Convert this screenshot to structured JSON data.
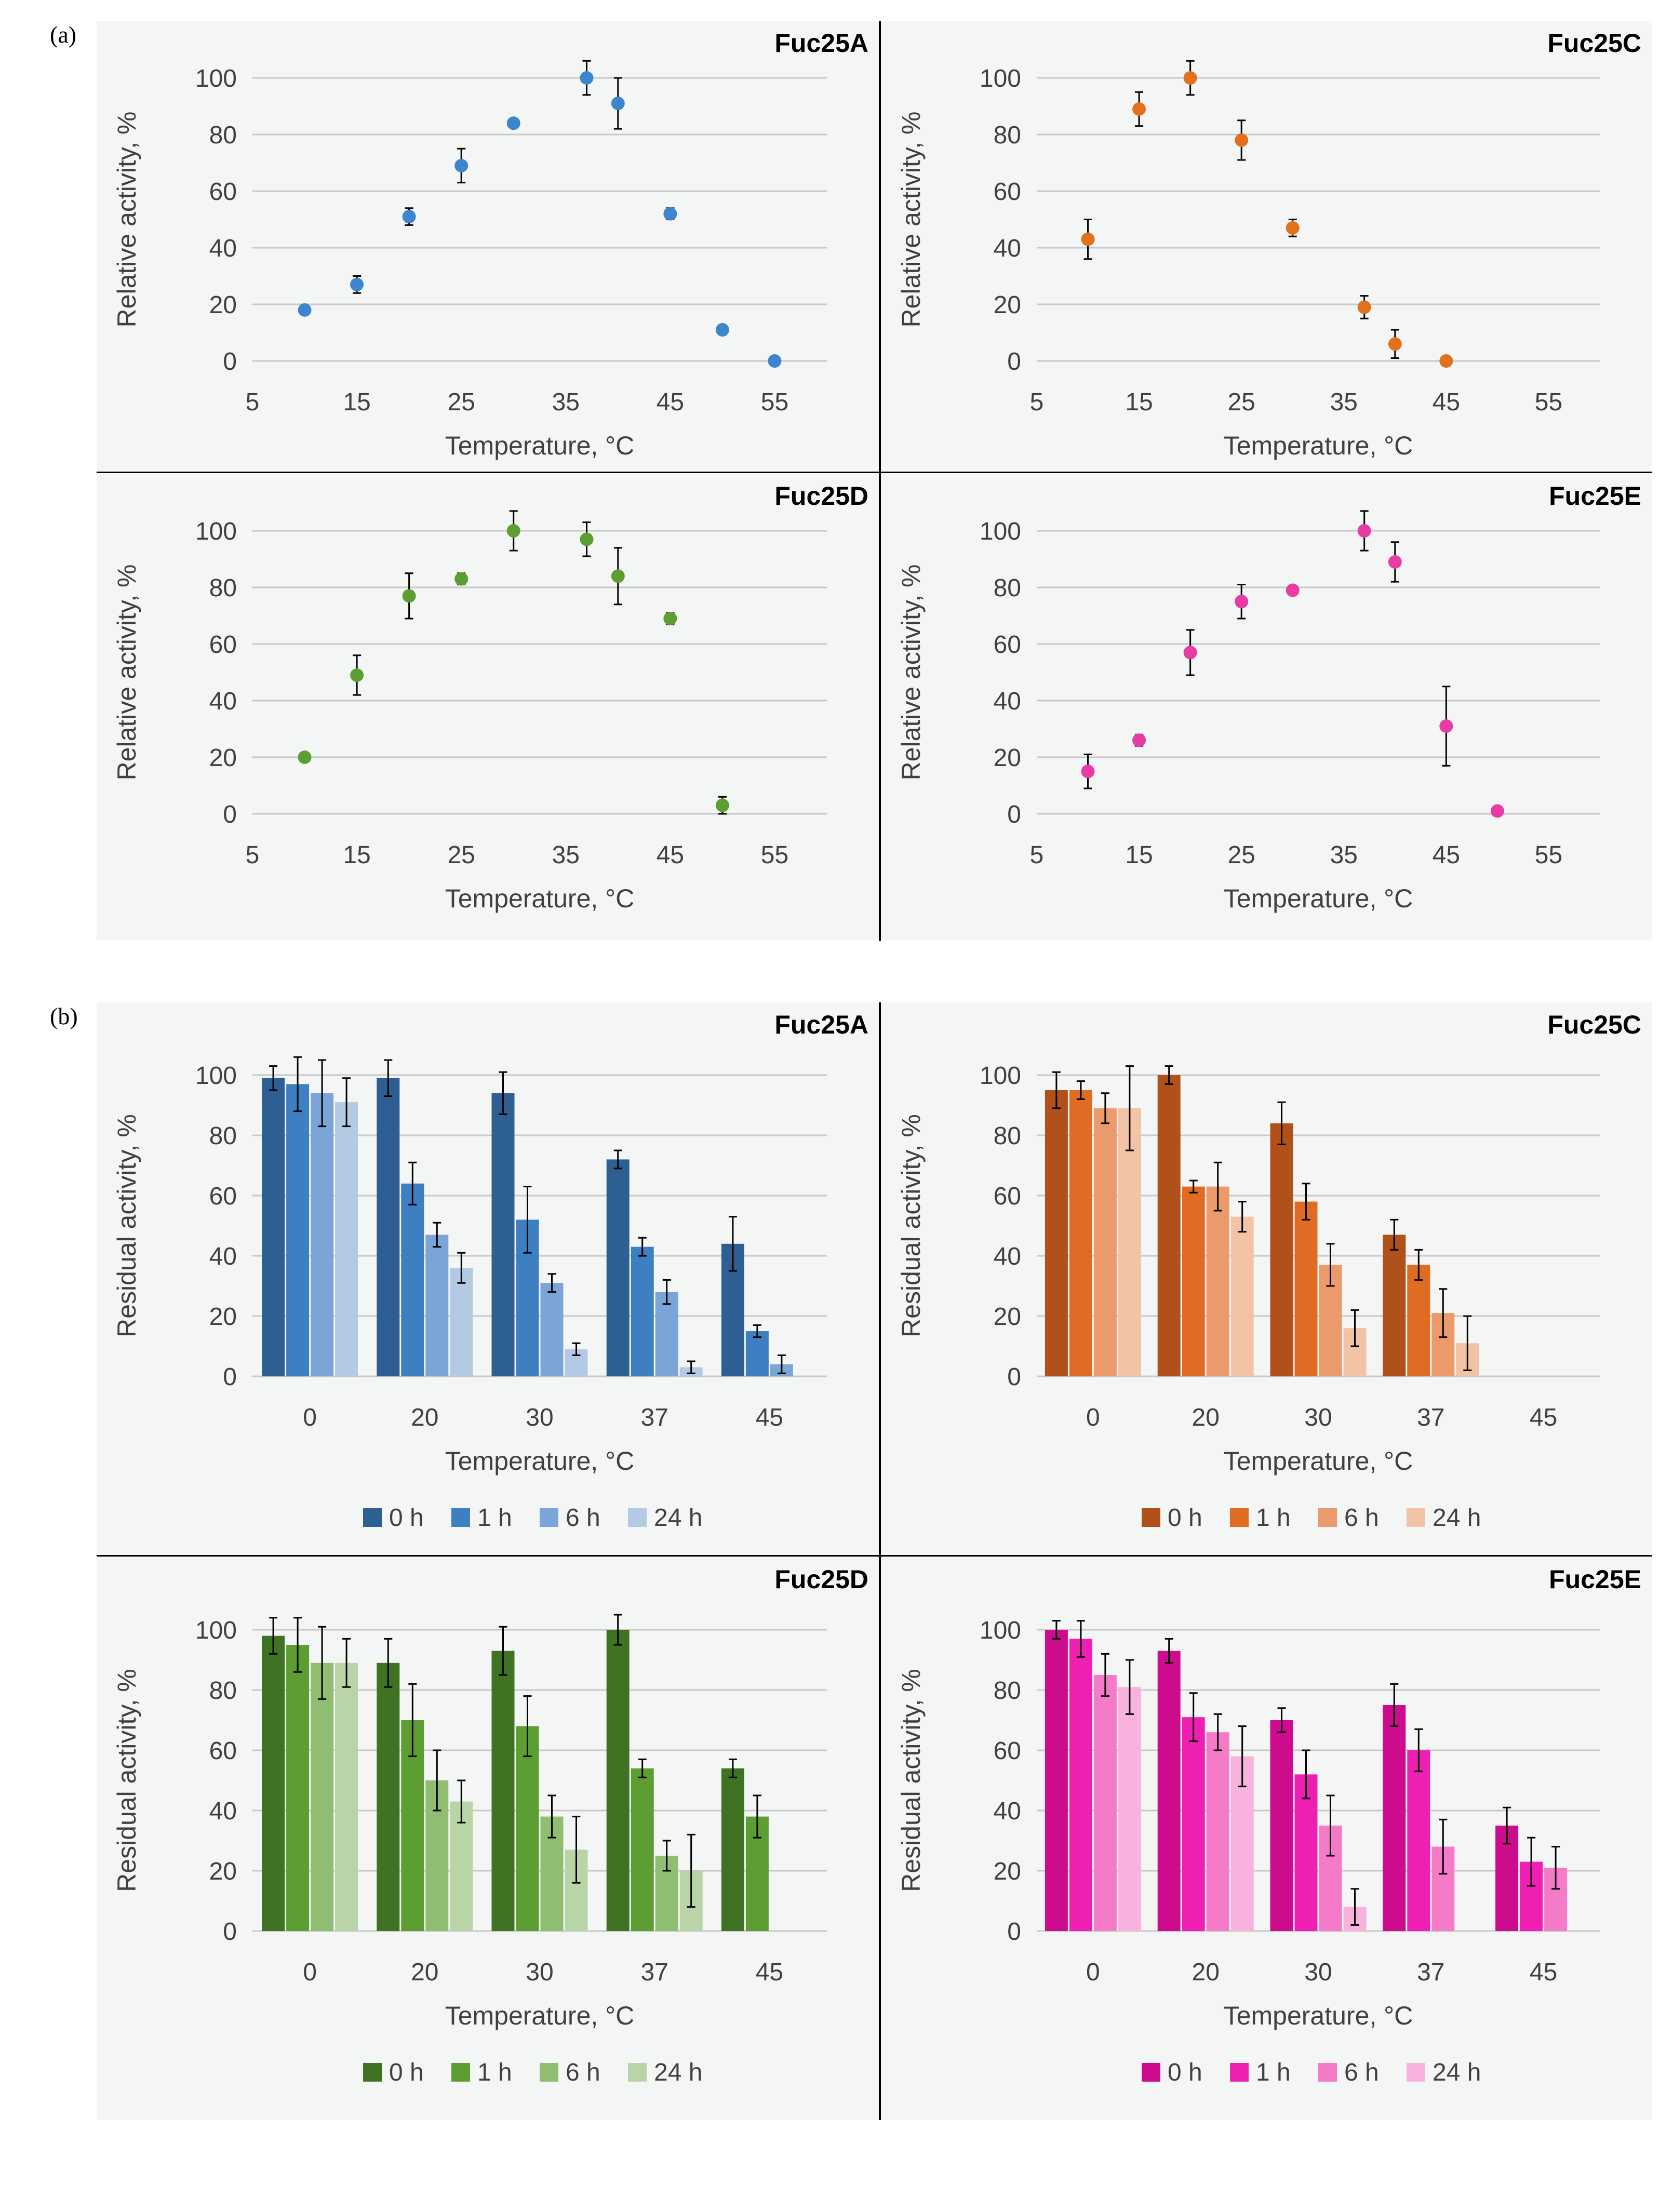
{
  "panel_labels": {
    "a": "(a)",
    "b": "(b)"
  },
  "colors": {
    "grid": "#c8c8c8",
    "axis_text": "#404040",
    "A": [
      "#2e5f93",
      "#3e7fc1",
      "#7aa5d6",
      "#b3c9e4"
    ],
    "C": [
      "#b0501a",
      "#e06b22",
      "#eb9a6b",
      "#f2c3a5"
    ],
    "D": [
      "#3f7222",
      "#5c9e31",
      "#8fbd72",
      "#b9d4a6"
    ],
    "E": [
      "#cc0c8c",
      "#f01fb4",
      "#f57bc9",
      "#f7b3dd"
    ],
    "scatter": {
      "A": "#3b86cd",
      "C": "#e3701d",
      "D": "#5c9e31",
      "E": "#e83ba3"
    }
  },
  "chart_data": [
    {
      "type": "scatter",
      "id": "a-fuc25a",
      "color_key": "A",
      "title": "Fuc25A",
      "xlabel": "Temperature, °C",
      "ylabel": "Relative activity, %",
      "xlim": [
        5,
        60
      ],
      "ylim": [
        0,
        100
      ],
      "xticks": [
        "5",
        "15",
        "25",
        "35",
        "45",
        "55"
      ],
      "yticks": [
        "0",
        "20",
        "40",
        "60",
        "80",
        "100"
      ],
      "points": [
        {
          "x": 10,
          "y": 18,
          "err": 0
        },
        {
          "x": 15,
          "y": 27,
          "err": 3
        },
        {
          "x": 20,
          "y": 51,
          "err": 3
        },
        {
          "x": 25,
          "y": 69,
          "err": 6
        },
        {
          "x": 30,
          "y": 84,
          "err": 0
        },
        {
          "x": 37,
          "y": 100,
          "err": 6
        },
        {
          "x": 40,
          "y": 91,
          "err": 9
        },
        {
          "x": 45,
          "y": 52,
          "err": 2
        },
        {
          "x": 50,
          "y": 11,
          "err": 0
        },
        {
          "x": 55,
          "y": 0,
          "err": 0
        }
      ]
    },
    {
      "type": "scatter",
      "id": "a-fuc25c",
      "color_key": "C",
      "title": "Fuc25C",
      "xlabel": "Temperature, °C",
      "ylabel": "Relative activity, %",
      "xlim": [
        5,
        60
      ],
      "ylim": [
        0,
        100
      ],
      "xticks": [
        "5",
        "15",
        "25",
        "35",
        "45",
        "55"
      ],
      "yticks": [
        "0",
        "20",
        "40",
        "60",
        "80",
        "100"
      ],
      "points": [
        {
          "x": 10,
          "y": 43,
          "err": 7
        },
        {
          "x": 15,
          "y": 89,
          "err": 6
        },
        {
          "x": 20,
          "y": 100,
          "err": 6
        },
        {
          "x": 25,
          "y": 78,
          "err": 7
        },
        {
          "x": 30,
          "y": 47,
          "err": 3
        },
        {
          "x": 37,
          "y": 19,
          "err": 4
        },
        {
          "x": 40,
          "y": 6,
          "err": 5
        },
        {
          "x": 45,
          "y": 0,
          "err": 0
        }
      ]
    },
    {
      "type": "scatter",
      "id": "a-fuc25d",
      "color_key": "D",
      "title": "Fuc25D",
      "xlabel": "Temperature, °C",
      "ylabel": "Relative activity, %",
      "xlim": [
        5,
        60
      ],
      "ylim": [
        0,
        100
      ],
      "xticks": [
        "5",
        "15",
        "25",
        "35",
        "45",
        "55"
      ],
      "yticks": [
        "0",
        "20",
        "40",
        "60",
        "80",
        "100"
      ],
      "points": [
        {
          "x": 10,
          "y": 20,
          "err": 0
        },
        {
          "x": 15,
          "y": 49,
          "err": 7
        },
        {
          "x": 20,
          "y": 77,
          "err": 8
        },
        {
          "x": 25,
          "y": 83,
          "err": 2
        },
        {
          "x": 30,
          "y": 100,
          "err": 7
        },
        {
          "x": 37,
          "y": 97,
          "err": 6
        },
        {
          "x": 40,
          "y": 84,
          "err": 10
        },
        {
          "x": 45,
          "y": 69,
          "err": 2
        },
        {
          "x": 50,
          "y": 3,
          "err": 3
        }
      ]
    },
    {
      "type": "scatter",
      "id": "a-fuc25e",
      "color_key": "E",
      "title": "Fuc25E",
      "xlabel": "Temperature, °C",
      "ylabel": "Relative activity, %",
      "xlim": [
        5,
        60
      ],
      "ylim": [
        0,
        100
      ],
      "xticks": [
        "5",
        "15",
        "25",
        "35",
        "45",
        "55"
      ],
      "yticks": [
        "0",
        "20",
        "40",
        "60",
        "80",
        "100"
      ],
      "points": [
        {
          "x": 10,
          "y": 15,
          "err": 6
        },
        {
          "x": 15,
          "y": 26,
          "err": 2
        },
        {
          "x": 20,
          "y": 57,
          "err": 8
        },
        {
          "x": 25,
          "y": 75,
          "err": 6
        },
        {
          "x": 30,
          "y": 79,
          "err": 0
        },
        {
          "x": 37,
          "y": 100,
          "err": 7
        },
        {
          "x": 40,
          "y": 89,
          "err": 7
        },
        {
          "x": 45,
          "y": 31,
          "err": 14
        },
        {
          "x": 50,
          "y": 1,
          "err": 0
        }
      ]
    },
    {
      "type": "bar",
      "id": "b-fuc25a",
      "color_key": "A",
      "title": "Fuc25A",
      "xlabel": "Temperature,  °C",
      "ylabel": "Residual activity, %",
      "ylim": [
        0,
        100
      ],
      "yticks": [
        "0",
        "20",
        "40",
        "60",
        "80",
        "100"
      ],
      "categories": [
        "0",
        "20",
        "30",
        "37",
        "45"
      ],
      "series": [
        {
          "name": "0 h",
          "values": [
            99,
            99,
            94,
            72,
            44
          ],
          "errors": [
            4,
            6,
            7,
            3,
            9
          ]
        },
        {
          "name": "1 h",
          "values": [
            97,
            64,
            52,
            43,
            15
          ],
          "errors": [
            9,
            7,
            11,
            3,
            2
          ]
        },
        {
          "name": "6 h",
          "values": [
            94,
            47,
            31,
            28,
            4
          ],
          "errors": [
            11,
            4,
            3,
            4,
            3
          ]
        },
        {
          "name": "24 h",
          "values": [
            91,
            36,
            9,
            3,
            null
          ],
          "errors": [
            8,
            5,
            2,
            2,
            0
          ]
        }
      ]
    },
    {
      "type": "bar",
      "id": "b-fuc25c",
      "color_key": "C",
      "title": "Fuc25C",
      "xlabel": "Temperature,  °C",
      "ylabel": "Residual activity, %",
      "ylim": [
        0,
        100
      ],
      "yticks": [
        "0",
        "20",
        "40",
        "60",
        "80",
        "100"
      ],
      "categories": [
        "0",
        "20",
        "30",
        "37",
        "45"
      ],
      "series": [
        {
          "name": "0 h",
          "values": [
            95,
            100,
            84,
            47,
            null
          ],
          "errors": [
            6,
            3,
            7,
            5,
            0
          ]
        },
        {
          "name": "1 h",
          "values": [
            95,
            63,
            58,
            37,
            null
          ],
          "errors": [
            3,
            2,
            6,
            5,
            0
          ]
        },
        {
          "name": "6 h",
          "values": [
            89,
            63,
            37,
            21,
            null
          ],
          "errors": [
            5,
            8,
            7,
            8,
            0
          ]
        },
        {
          "name": "24 h",
          "values": [
            89,
            53,
            16,
            11,
            null
          ],
          "errors": [
            14,
            5,
            6,
            9,
            0
          ]
        }
      ]
    },
    {
      "type": "bar",
      "id": "b-fuc25d",
      "color_key": "D",
      "title": "Fuc25D",
      "xlabel": "Temperature,  °C",
      "ylabel": "Residual activity, %",
      "ylim": [
        0,
        100
      ],
      "yticks": [
        "0",
        "20",
        "40",
        "60",
        "80",
        "100"
      ],
      "categories": [
        "0",
        "20",
        "30",
        "37",
        "45"
      ],
      "series": [
        {
          "name": "0 h",
          "values": [
            98,
            89,
            93,
            100,
            54
          ],
          "errors": [
            6,
            8,
            8,
            5,
            3
          ]
        },
        {
          "name": "1 h",
          "values": [
            95,
            70,
            68,
            54,
            38
          ],
          "errors": [
            9,
            12,
            10,
            3,
            7
          ]
        },
        {
          "name": "6 h",
          "values": [
            89,
            50,
            38,
            25,
            null
          ],
          "errors": [
            12,
            10,
            7,
            5,
            0
          ]
        },
        {
          "name": "24 h",
          "values": [
            89,
            43,
            27,
            20,
            null
          ],
          "errors": [
            8,
            7,
            11,
            12,
            0
          ]
        }
      ]
    },
    {
      "type": "bar",
      "id": "b-fuc25e",
      "color_key": "E",
      "title": "Fuc25E",
      "xlabel": "Temperature,  °C",
      "ylabel": "Residual activity, %",
      "ylim": [
        0,
        100
      ],
      "yticks": [
        "0",
        "20",
        "40",
        "60",
        "80",
        "100"
      ],
      "categories": [
        "0",
        "20",
        "30",
        "37",
        "45"
      ],
      "series": [
        {
          "name": "0 h",
          "values": [
            100,
            93,
            70,
            75,
            35
          ],
          "errors": [
            3,
            4,
            4,
            7,
            6
          ]
        },
        {
          "name": "1 h",
          "values": [
            97,
            71,
            52,
            60,
            23
          ],
          "errors": [
            6,
            8,
            8,
            7,
            8
          ]
        },
        {
          "name": "6 h",
          "values": [
            85,
            66,
            35,
            28,
            21
          ],
          "errors": [
            7,
            6,
            10,
            9,
            7
          ]
        },
        {
          "name": "24 h",
          "values": [
            81,
            58,
            8,
            null,
            null
          ],
          "errors": [
            9,
            10,
            6,
            0,
            0
          ]
        }
      ]
    }
  ]
}
